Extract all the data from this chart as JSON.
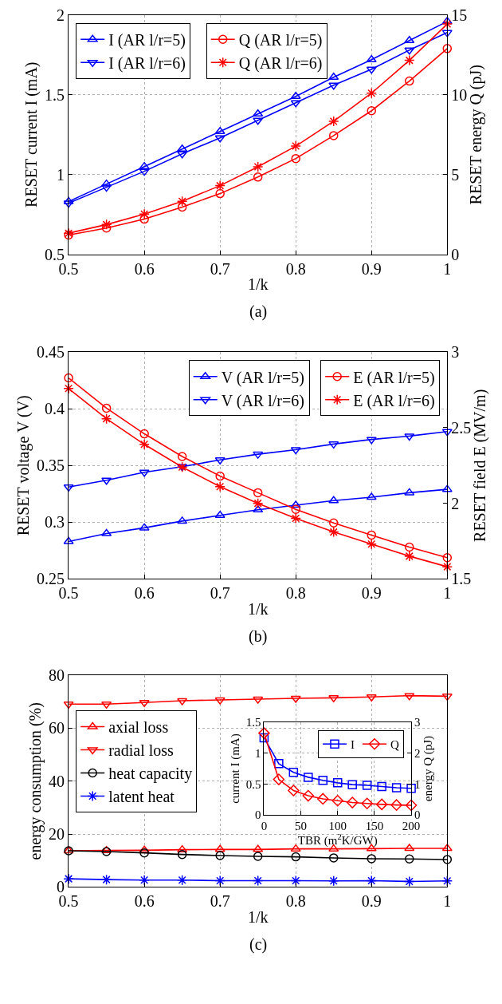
{
  "chart_data": [
    {
      "type": "line",
      "xlabel": "1/k",
      "ylabel": "RESET current I (mA)",
      "y2label": "RESET energy Q (pJ)",
      "annotations": [
        "(a)"
      ],
      "x": [
        0.5,
        0.55,
        0.6,
        0.65,
        0.7,
        0.75,
        0.8,
        0.85,
        0.9,
        0.95,
        1
      ],
      "xlim": [
        0.5,
        1
      ],
      "xticks": [
        0.5,
        0.6,
        0.7,
        0.8,
        0.9,
        1
      ],
      "ylim": [
        0.5,
        2
      ],
      "yticks": [
        0.5,
        1,
        1.5,
        2
      ],
      "y2lim": [
        0,
        15
      ],
      "y2ticks": [
        0,
        5,
        10,
        15
      ],
      "grid": true,
      "legend": "top left",
      "line_style": "solid",
      "series": [
        {
          "name": "I (AR l/r=5)",
          "color": "#0000ff",
          "marker": "triangle",
          "values": [
            0.83,
            0.94,
            1.05,
            1.16,
            1.27,
            1.38,
            1.49,
            1.61,
            1.72,
            1.84,
            1.96
          ]
        },
        {
          "name": "I (AR l/r=6)",
          "color": "#0000ff",
          "marker": "triangle-down",
          "values": [
            0.82,
            0.92,
            1.02,
            1.13,
            1.23,
            1.34,
            1.45,
            1.56,
            1.66,
            1.78,
            1.89
          ]
        },
        {
          "name": "Q (AR l/r=5)",
          "color": "#ff0000",
          "marker": "circle",
          "axis": "y2",
          "values": [
            1.2,
            1.64,
            2.2,
            2.96,
            3.8,
            4.84,
            6.0,
            7.44,
            9.0,
            10.86,
            12.9
          ]
        },
        {
          "name": "Q (AR l/r=6)",
          "color": "#ff0000",
          "marker": "cross",
          "axis": "y2",
          "values": [
            1.32,
            1.86,
            2.52,
            3.32,
            4.3,
            5.48,
            6.78,
            8.34,
            10.1,
            12.16,
            14.44
          ]
        }
      ]
    },
    {
      "type": "line",
      "xlabel": "1/k",
      "ylabel": "RESET voltage V (V)",
      "y2label": "RESET field E (MV/m)",
      "annotations": [
        "(b)"
      ],
      "x": [
        0.5,
        0.55,
        0.6,
        0.65,
        0.7,
        0.75,
        0.8,
        0.85,
        0.9,
        0.95,
        1
      ],
      "xlim": [
        0.5,
        1
      ],
      "xticks": [
        0.5,
        0.6,
        0.7,
        0.8,
        0.9,
        1
      ],
      "ylim": [
        0.25,
        0.45
      ],
      "yticks": [
        0.25,
        0.3,
        0.35,
        0.4,
        0.45
      ],
      "y2lim": [
        1.5,
        3
      ],
      "y2ticks": [
        1.5,
        2,
        2.5,
        3
      ],
      "grid": true,
      "legend": "top right",
      "line_style": "solid",
      "series": [
        {
          "name": "V (AR l/r=5)",
          "color": "#0000ff",
          "marker": "triangle",
          "values": [
            0.283,
            0.29,
            0.295,
            0.301,
            0.306,
            0.311,
            0.315,
            0.319,
            0.322,
            0.326,
            0.329
          ]
        },
        {
          "name": "V (AR l/r=6)",
          "color": "#0000ff",
          "marker": "triangle-down",
          "values": [
            0.331,
            0.337,
            0.344,
            0.349,
            0.355,
            0.36,
            0.364,
            0.369,
            0.373,
            0.376,
            0.38
          ]
        },
        {
          "name": "E (AR l/r=5)",
          "color": "#ff0000",
          "marker": "circle",
          "axis": "y2",
          "values": [
            2.83,
            2.63,
            2.46,
            2.31,
            2.18,
            2.07,
            1.96,
            1.87,
            1.79,
            1.71,
            1.64
          ]
        },
        {
          "name": "E (AR l/r=6)",
          "color": "#ff0000",
          "marker": "cross",
          "axis": "y2",
          "values": [
            2.76,
            2.56,
            2.39,
            2.24,
            2.11,
            2.0,
            1.9,
            1.81,
            1.73,
            1.65,
            1.58
          ]
        }
      ]
    },
    {
      "type": "line",
      "xlabel": "1/k",
      "ylabel": "energy consumption (%)",
      "annotations": [
        "(c)"
      ],
      "x": [
        0.5,
        0.55,
        0.6,
        0.65,
        0.7,
        0.75,
        0.8,
        0.85,
        0.9,
        0.95,
        1
      ],
      "xlim": [
        0.5,
        1
      ],
      "xticks": [
        0.5,
        0.6,
        0.7,
        0.8,
        0.9,
        1
      ],
      "ylim": [
        0,
        80
      ],
      "yticks": [
        0,
        20,
        40,
        60,
        80
      ],
      "grid": true,
      "legend": "left",
      "line_style": "solid",
      "series": [
        {
          "name": "axial loss",
          "color": "#ff0000",
          "marker": "triangle",
          "values": [
            13.7,
            13.8,
            13.9,
            14.1,
            14.2,
            14.2,
            14.4,
            14.4,
            14.5,
            14.6,
            14.6
          ]
        },
        {
          "name": "radial loss",
          "color": "#ff0000",
          "marker": "triangle-down",
          "values": [
            69.1,
            69.1,
            69.7,
            70.4,
            70.7,
            71.0,
            71.3,
            71.5,
            71.8,
            72.3,
            72.1
          ]
        },
        {
          "name": "heat capacity",
          "color": "#000000",
          "marker": "circle",
          "values": [
            13.7,
            13.4,
            12.9,
            12.3,
            11.9,
            11.6,
            11.4,
            11.0,
            10.7,
            10.6,
            10.4
          ]
        },
        {
          "name": "latent heat",
          "color": "#0000ff",
          "marker": "cross",
          "values": [
            3.1,
            2.8,
            2.6,
            2.6,
            2.4,
            2.4,
            2.4,
            2.3,
            2.4,
            2.1,
            2.3
          ]
        }
      ]
    },
    {
      "type": "line",
      "xlabel": "TBR (m$^{2}$K/GW)",
      "ylabel": "current I (mA)",
      "y2label": "energy Q (pJ)",
      "x": [
        0,
        20,
        40,
        60,
        80,
        100,
        120,
        140,
        160,
        180,
        200
      ],
      "xlim": [
        0,
        200
      ],
      "xticks": [
        0,
        50,
        100,
        150,
        200
      ],
      "ylim": [
        0,
        1.5
      ],
      "yticks": [
        0,
        0.5,
        1,
        1.5
      ],
      "y2lim": [
        0,
        3
      ],
      "y2ticks": [
        0,
        1,
        2,
        3
      ],
      "grid": true,
      "legend": "top right",
      "line_style": "solid",
      "series": [
        {
          "name": "I",
          "color": "#0000ff",
          "marker": "square",
          "values": [
            1.25,
            0.83,
            0.69,
            0.61,
            0.56,
            0.52,
            0.49,
            0.48,
            0.46,
            0.44,
            0.43
          ]
        },
        {
          "name": "Q",
          "color": "#ff0000",
          "marker": "diamond",
          "axis": "y2",
          "values": [
            2.65,
            1.15,
            0.79,
            0.62,
            0.52,
            0.46,
            0.4,
            0.37,
            0.34,
            0.32,
            0.31
          ]
        }
      ]
    }
  ]
}
